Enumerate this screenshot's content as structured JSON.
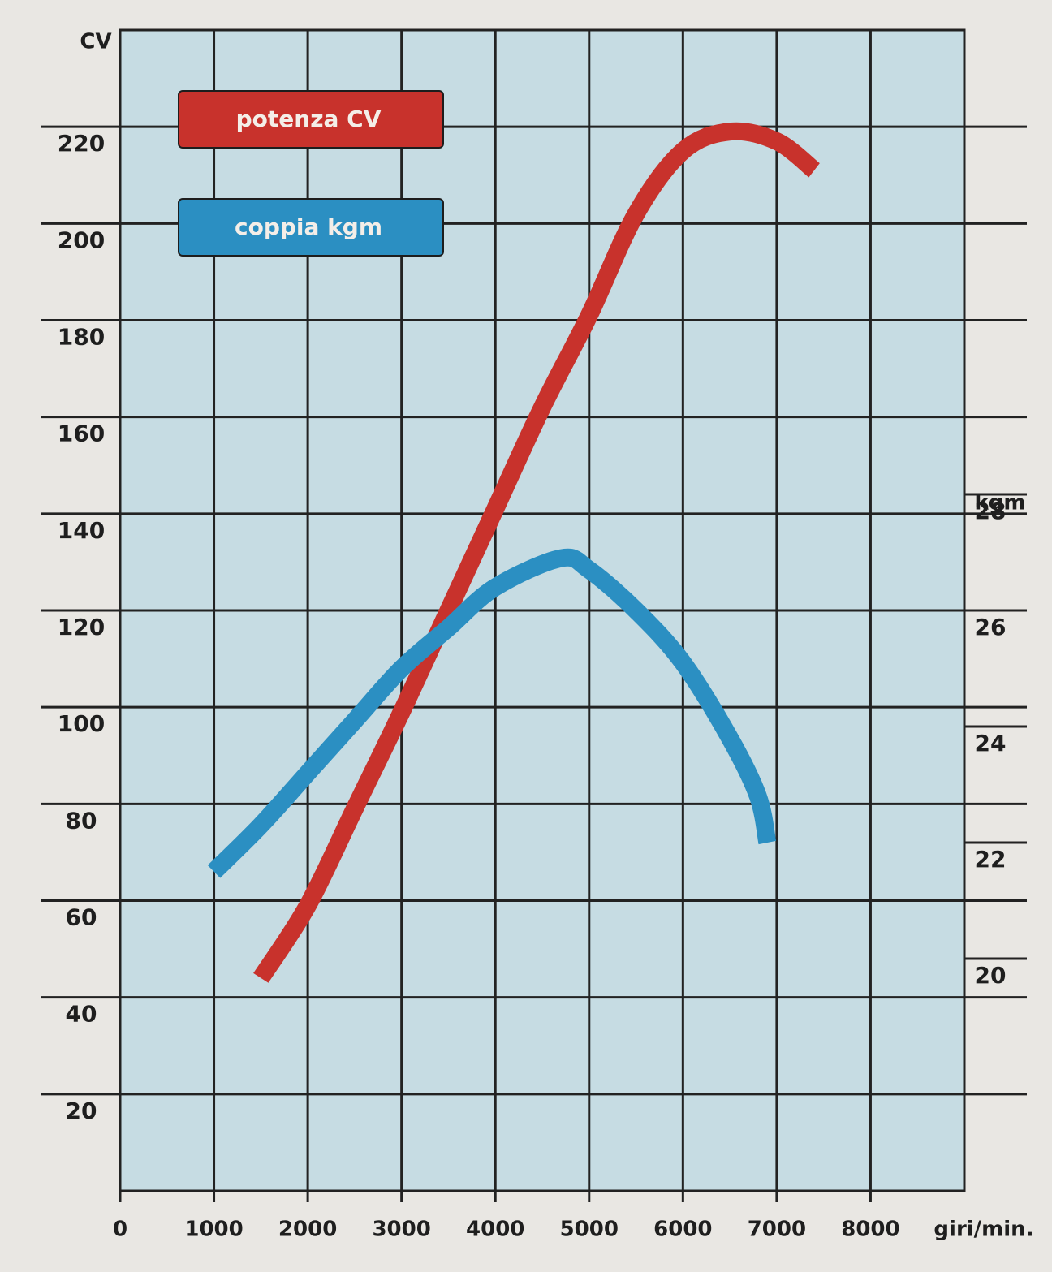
{
  "chart_data": {
    "type": "line",
    "y_label": "CV",
    "y2_label": "kgm",
    "x_label": "giri/min.",
    "xlim": [
      0,
      9000
    ],
    "xticks": [
      0,
      1000,
      2000,
      3000,
      4000,
      5000,
      6000,
      7000,
      8000
    ],
    "ylim": [
      0,
      240
    ],
    "yticks": [
      20,
      40,
      60,
      80,
      100,
      120,
      140,
      160,
      180,
      200,
      220
    ],
    "y2lim": [
      16,
      36
    ],
    "y2ticks": [
      20,
      22,
      24,
      26,
      28
    ],
    "grid": true,
    "legend": "top-left",
    "series": [
      {
        "name": "potenza CV",
        "color": "#c8322c",
        "x": [
          1500,
          2000,
          2500,
          3000,
          3500,
          4000,
          4500,
          5000,
          5500,
          6000,
          6500,
          7000,
          7400
        ],
        "values": [
          44,
          59,
          79,
          99,
          120,
          141,
          162,
          181,
          202,
          215,
          219,
          217,
          211
        ]
      },
      {
        "name": "coppia kgm",
        "color": "#2b8fc2",
        "axis": "y2",
        "x": [
          1000,
          1500,
          2000,
          2500,
          3000,
          3500,
          4000,
          4700,
          5000,
          5500,
          6000,
          6500,
          6800,
          6900
        ],
        "values": [
          21.5,
          22.3,
          23.2,
          24.1,
          25.0,
          25.7,
          26.4,
          26.9,
          26.7,
          26.0,
          25.1,
          23.8,
          22.8,
          22.0
        ]
      }
    ]
  }
}
